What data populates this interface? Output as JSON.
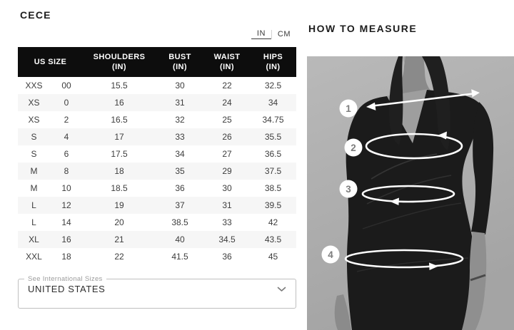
{
  "brand": "CECE",
  "unit_toggle": {
    "inches_label": "IN",
    "cm_label": "CM",
    "active": "IN"
  },
  "size_chart": {
    "header": {
      "us_size": "US SIZE",
      "columns": [
        {
          "name": "SHOULDERS",
          "unit": "(IN)"
        },
        {
          "name": "BUST",
          "unit": "(IN)"
        },
        {
          "name": "WAIST",
          "unit": "(IN)"
        },
        {
          "name": "HIPS",
          "unit": "(IN)"
        }
      ]
    },
    "rows": [
      {
        "size": "XXS",
        "us": "00",
        "shoulders": "15.5",
        "bust": "30",
        "waist": "22",
        "hips": "32.5"
      },
      {
        "size": "XS",
        "us": "0",
        "shoulders": "16",
        "bust": "31",
        "waist": "24",
        "hips": "34"
      },
      {
        "size": "XS",
        "us": "2",
        "shoulders": "16.5",
        "bust": "32",
        "waist": "25",
        "hips": "34.75"
      },
      {
        "size": "S",
        "us": "4",
        "shoulders": "17",
        "bust": "33",
        "waist": "26",
        "hips": "35.5"
      },
      {
        "size": "S",
        "us": "6",
        "shoulders": "17.5",
        "bust": "34",
        "waist": "27",
        "hips": "36.5"
      },
      {
        "size": "M",
        "us": "8",
        "shoulders": "18",
        "bust": "35",
        "waist": "29",
        "hips": "37.5"
      },
      {
        "size": "M",
        "us": "10",
        "shoulders": "18.5",
        "bust": "36",
        "waist": "30",
        "hips": "38.5"
      },
      {
        "size": "L",
        "us": "12",
        "shoulders": "19",
        "bust": "37",
        "waist": "31",
        "hips": "39.5"
      },
      {
        "size": "L",
        "us": "14",
        "shoulders": "20",
        "bust": "38.5",
        "waist": "33",
        "hips": "42"
      },
      {
        "size": "XL",
        "us": "16",
        "shoulders": "21",
        "bust": "40",
        "waist": "34.5",
        "hips": "43.5"
      },
      {
        "size": "XXL",
        "us": "18",
        "shoulders": "22",
        "bust": "41.5",
        "waist": "36",
        "hips": "45"
      }
    ]
  },
  "international_sizes": {
    "label": "See International Sizes",
    "selected": "UNITED STATES"
  },
  "how_to_measure": {
    "title": "HOW TO MEASURE",
    "markers": [
      "1",
      "2",
      "3",
      "4"
    ]
  },
  "colors": {
    "header_bg": "#0d0d0d",
    "header_text": "#ffffff",
    "row_stripe": "#f6f6f6",
    "body_text": "#3d3d3d",
    "photo_bg": "#afafaf",
    "dress": "#1b1b1b",
    "overlay": "#ffffff"
  }
}
